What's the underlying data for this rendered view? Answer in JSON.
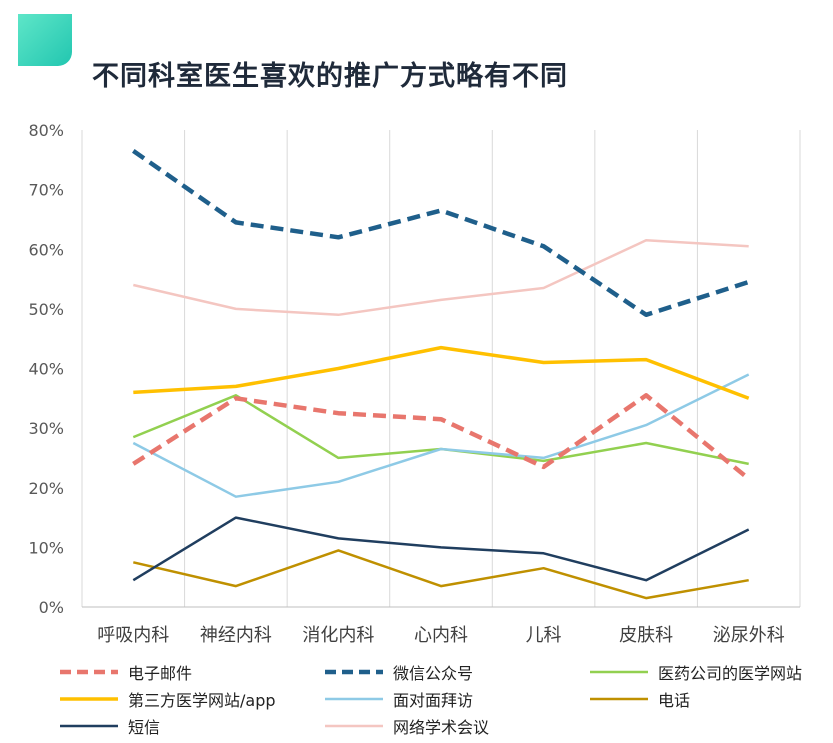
{
  "page": {
    "title": "不同科室医生喜欢的推广方式略有不同"
  },
  "chart_data": {
    "type": "line",
    "title": "不同科室医生喜欢的推广方式略有不同",
    "xlabel": "",
    "ylabel": "",
    "ylim": [
      0,
      80
    ],
    "y_ticks": [
      "0%",
      "10%",
      "20%",
      "30%",
      "40%",
      "50%",
      "60%",
      "70%",
      "80%"
    ],
    "categories": [
      "呼吸内科",
      "神经内科",
      "消化内科",
      "心内科",
      "儿科",
      "皮肤科",
      "泌尿外科"
    ],
    "grid": "vertical",
    "legend_position": "bottom",
    "series": [
      {
        "name": "电子邮件",
        "color": "#e8766d",
        "dash": "dashed-thick",
        "values": [
          24,
          35,
          32.5,
          31.5,
          23.5,
          35.5,
          21.5
        ]
      },
      {
        "name": "微信公众号",
        "color": "#1f5f8b",
        "dash": "dashed-thick",
        "values": [
          76.5,
          64.5,
          62,
          66.5,
          60.5,
          49,
          54.5
        ]
      },
      {
        "name": "医药公司的医学网站",
        "color": "#92d050",
        "dash": "solid",
        "values": [
          28.5,
          35.5,
          25,
          26.5,
          24.5,
          27.5,
          24
        ]
      },
      {
        "name": "第三方医学网站/app",
        "color": "#ffc000",
        "dash": "solid-thick",
        "values": [
          36,
          37,
          40,
          43.5,
          41,
          41.5,
          35
        ]
      },
      {
        "name": "面对面拜访",
        "color": "#8ecae6",
        "dash": "solid",
        "values": [
          27.5,
          18.5,
          21,
          26.5,
          25,
          30.5,
          39
        ]
      },
      {
        "name": "电话",
        "color": "#bf9000",
        "dash": "solid",
        "values": [
          7.5,
          3.5,
          9.5,
          3.5,
          6.5,
          1.5,
          4.5
        ]
      },
      {
        "name": "短信",
        "color": "#203e5f",
        "dash": "solid",
        "values": [
          4.5,
          15,
          11.5,
          10,
          9,
          4.5,
          13
        ]
      },
      {
        "name": "网络学术会议",
        "color": "#f4c6c1",
        "dash": "solid",
        "values": [
          54,
          50,
          49,
          51.5,
          53.5,
          61.5,
          60.5
        ]
      }
    ]
  }
}
